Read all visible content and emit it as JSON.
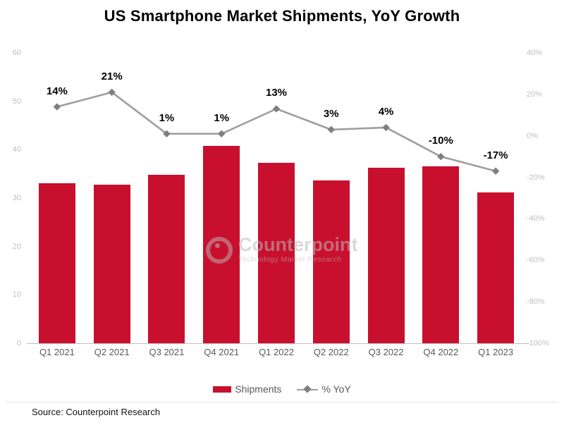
{
  "title": "US Smartphone Market Shipments, YoY Growth",
  "source": "Source: Counterpoint Research",
  "watermark": {
    "brand": "Counterpoint",
    "tagline": "Technology Market Research"
  },
  "legend": {
    "bar_label": "Shipments",
    "line_label": "% YoY"
  },
  "colors": {
    "bar": "#C8102E",
    "line": "#9E9E9E",
    "marker": "#7F7F7F",
    "axis_tick_text": "#BFBFBF",
    "x_tick_text": "#595959",
    "data_label_text": "#000000"
  },
  "chart_data": {
    "type": "bar",
    "subtype": "combo-bar-line-dual-axis",
    "title": "US Smartphone Market Shipments, YoY Growth",
    "categories": [
      "Q1 2021",
      "Q2 2021",
      "Q3 2021",
      "Q4 2021",
      "Q1 2022",
      "Q2 2022",
      "Q3 2022",
      "Q4 2022",
      "Q1 2023"
    ],
    "series": [
      {
        "name": "Shipments",
        "type": "bar",
        "axis": "left",
        "values": [
          33.1,
          32.7,
          34.8,
          40.8,
          37.3,
          33.7,
          36.3,
          36.5,
          31.1
        ]
      },
      {
        "name": "% YoY",
        "type": "line",
        "axis": "right",
        "values": [
          14,
          21,
          1,
          1,
          13,
          3,
          4,
          -10,
          -17
        ],
        "labels": [
          "14%",
          "21%",
          "1%",
          "1%",
          "13%",
          "3%",
          "4%",
          "-10%",
          "-17%"
        ]
      }
    ],
    "left_axis": {
      "min": 0,
      "max": 60,
      "ticks": [
        0,
        10,
        20,
        30,
        40,
        50,
        60
      ]
    },
    "right_axis": {
      "min": -100,
      "max": 40,
      "tick_values": [
        40,
        20,
        0,
        -20,
        -40,
        -60,
        -80,
        -100
      ],
      "tick_labels": [
        "40%",
        "20%",
        "0%",
        "-20%",
        "-40%",
        "-60%",
        "-80%",
        "-100%"
      ]
    },
    "grid": false,
    "legend_position": "bottom",
    "xlabel": "",
    "ylabel_left": "",
    "ylabel_right": ""
  }
}
